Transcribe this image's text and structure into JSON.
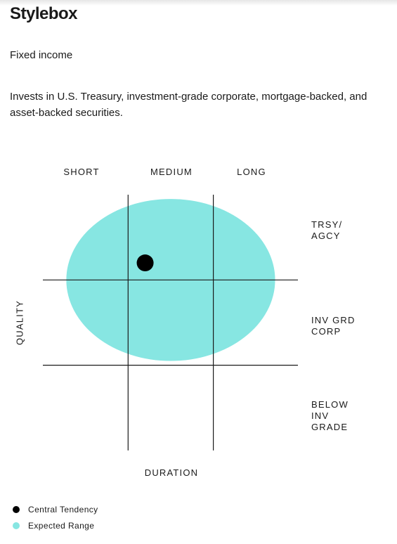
{
  "header": {
    "title": "Stylebox",
    "subtitle": "Fixed income",
    "description": "Invests in U.S. Treasury, investment-grade corporate, mortgage-backed, and asset-backed securities."
  },
  "stylebox": {
    "columns": [
      "SHORT",
      "MEDIUM",
      "LONG"
    ],
    "rows": [
      "TRSY/\nAGCY",
      "INV GRD\nCORP",
      "BELOW\nINV\nGRADE"
    ],
    "x_axis_label": "DURATION",
    "y_axis_label": "QUALITY",
    "central_tendency": {
      "column": 1.2,
      "row": 0.8
    },
    "expected_range": {
      "column_center": 1.5,
      "row_center": 1.0,
      "column_span": 2.45,
      "row_span": 1.9
    },
    "colors": {
      "range": "#87e6e2",
      "dot": "#000000",
      "grid": "#1a1a1a"
    }
  },
  "legend": {
    "items": [
      {
        "label": "Central Tendency",
        "color": "#000000"
      },
      {
        "label": "Expected Range",
        "color": "#87e6e2"
      }
    ]
  }
}
